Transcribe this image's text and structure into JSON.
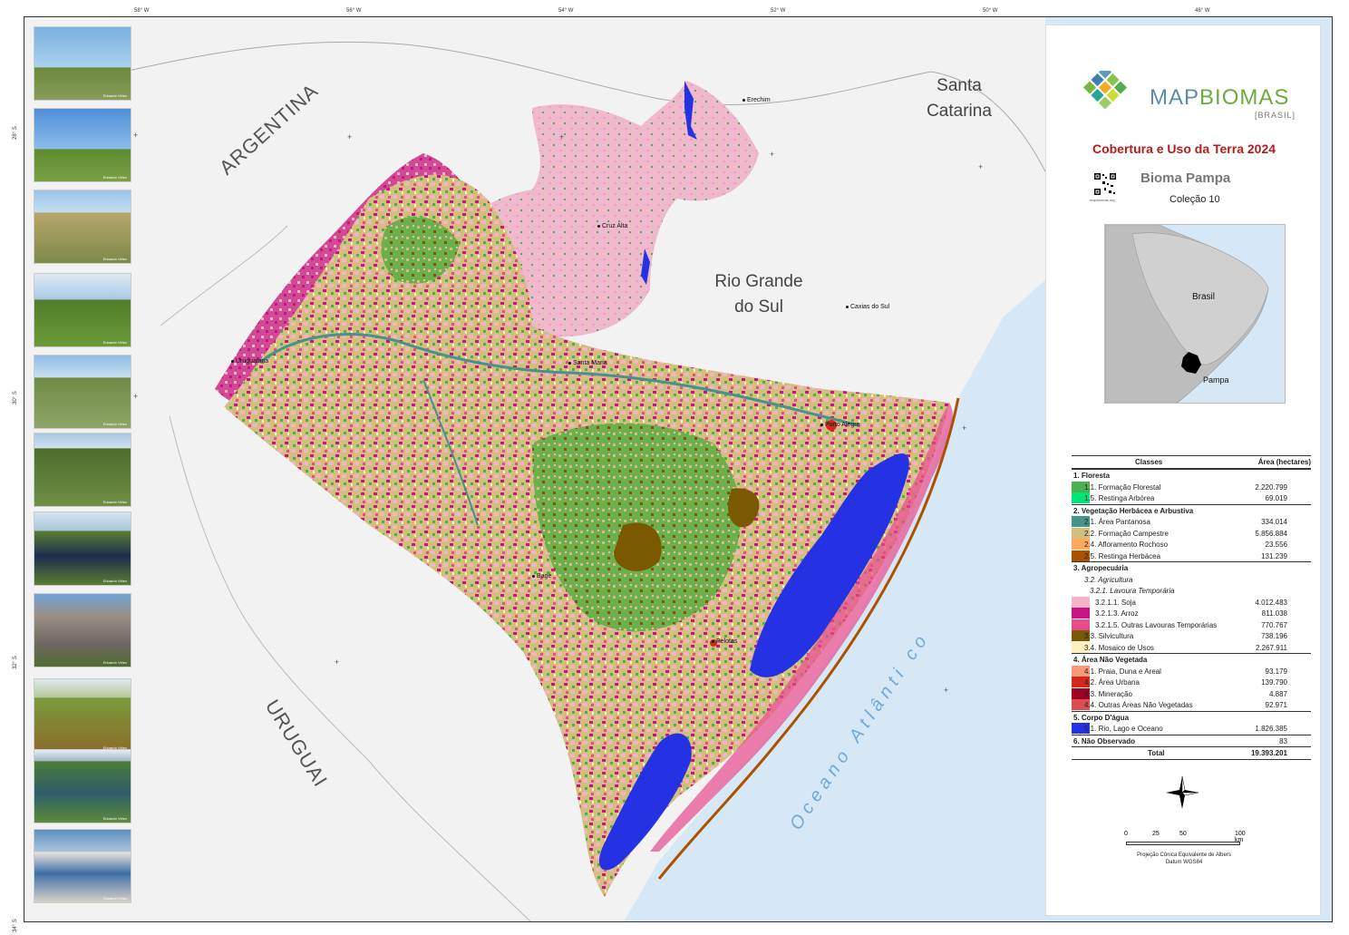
{
  "coordinates": {
    "longitudes": [
      "58° W",
      "56° W",
      "54° W",
      "52° W",
      "50° W",
      "48° W"
    ],
    "latitudes": [
      "28° S",
      "30° S",
      "32° S",
      "34° S"
    ]
  },
  "photo_credit": "Eduardo Vélez",
  "map_labels": {
    "countries": [
      "ARGENTINA",
      "URUGUAI"
    ],
    "state_sc": [
      "Santa",
      "Catarina"
    ],
    "state_rs": [
      "Rio Grande",
      "do Sul"
    ],
    "ocean": "Oceano Atlânti co"
  },
  "cities": [
    "Erechim",
    "Cruz Alta",
    "Caxias do Sul",
    "Uruguaiana",
    "Santa Maria",
    "Porto Alegre",
    "Bagé",
    "Pelotas"
  ],
  "header": {
    "logo_main_1": "MAP",
    "logo_main_2": "BIOMAS",
    "logo_sub": "[BRASIL]",
    "title": "Cobertura e Uso da Terra 2024",
    "biome": "Bioma Pampa",
    "collection": "Coleção 10",
    "qr_label": "mapbiomas.org"
  },
  "inset": {
    "country": "Brasil",
    "biome": "Pampa"
  },
  "legend": {
    "col_classes": "Classes",
    "col_area": "Área (hectares)",
    "rows": [
      {
        "label": "1. Floresta",
        "value": "",
        "color": "",
        "type": "group"
      },
      {
        "label": "1.1. Formação Florestal",
        "value": "2.220.799",
        "color": "#4caf50",
        "type": "item",
        "indent": 1
      },
      {
        "label": "1.5. Restinga Arbórea",
        "value": "69.019",
        "color": "#00e676",
        "type": "item",
        "indent": 1
      },
      {
        "label": "2. Vegetação Herbácea e Arbustiva",
        "value": "",
        "color": "",
        "type": "group"
      },
      {
        "label": "2.1. Área Pantanosa",
        "value": "334.014",
        "color": "#45938a",
        "type": "item",
        "indent": 1
      },
      {
        "label": "2.2. Formação Campestre",
        "value": "5.856.884",
        "color": "#d2bf7d",
        "type": "item",
        "indent": 1
      },
      {
        "label": "2.4. Afloramento Rochoso",
        "value": "23.556",
        "color": "#ffaa5f",
        "type": "item",
        "indent": 1
      },
      {
        "label": "2.5. Restinga Herbácea",
        "value": "131.239",
        "color": "#ad5100",
        "type": "item",
        "indent": 1
      },
      {
        "label": "3. Agropecuária",
        "value": "",
        "color": "",
        "type": "group"
      },
      {
        "label": "3.2. Agricultura",
        "value": "",
        "color": "",
        "type": "sub",
        "indent": 1
      },
      {
        "label": "3.2.1. Lavoura Temporária",
        "value": "",
        "color": "",
        "type": "sub",
        "indent": 2
      },
      {
        "label": "3.2.1.1. Soja",
        "value": "4.012.483",
        "color": "#f5b3c8",
        "type": "item",
        "indent": 3
      },
      {
        "label": "3.2.1.3. Arroz",
        "value": "811.038",
        "color": "#c71585",
        "type": "item",
        "indent": 3
      },
      {
        "label": "3.2.1.5. Outras Lavouras Temporárias",
        "value": "770.767",
        "color": "#e84c8f",
        "type": "item",
        "indent": 3
      },
      {
        "label": "3.3. Silvicultura",
        "value": "738.196",
        "color": "#7a5900",
        "type": "item",
        "indent": 1
      },
      {
        "label": "3.4. Mosaico de Usos",
        "value": "2.267.911",
        "color": "#ffefc3",
        "type": "item",
        "indent": 1
      },
      {
        "label": "4. Área Não Vegetada",
        "value": "",
        "color": "",
        "type": "group"
      },
      {
        "label": "4.1. Praia, Duna e Areal",
        "value": "93.179",
        "color": "#f89a7a",
        "type": "item",
        "indent": 1
      },
      {
        "label": "4.2. Área Urbana",
        "value": "139.790",
        "color": "#d4271e",
        "type": "item",
        "indent": 1
      },
      {
        "label": "4.3. Mineração",
        "value": "4.887",
        "color": "#9c0027",
        "type": "item",
        "indent": 1
      },
      {
        "label": "4.4. Outras Áreas Não Vegetadas",
        "value": "92.971",
        "color": "#db4d4f",
        "type": "item",
        "indent": 1
      },
      {
        "label": "5. Corpo D'água",
        "value": "",
        "color": "",
        "type": "group"
      },
      {
        "label": "5.1. Rio, Lago e Oceano",
        "value": "1.826.385",
        "color": "#2532e4",
        "type": "item",
        "indent": 1
      },
      {
        "label": "6. Não Observado",
        "value": "83",
        "color": "",
        "type": "group"
      },
      {
        "label": "Total",
        "value": "19.393.201",
        "color": "",
        "type": "total"
      }
    ]
  },
  "scale": {
    "ticks": [
      "0",
      "25",
      "50",
      "100 km"
    ]
  },
  "projection": {
    "line1": "Projeção Cônica Equivalente de Albers",
    "line2": "Datum WGS84"
  },
  "colors": {
    "title_red": "#b71c1c",
    "ocean": "#d6e8f5",
    "land_other": "#f2f2f2"
  }
}
